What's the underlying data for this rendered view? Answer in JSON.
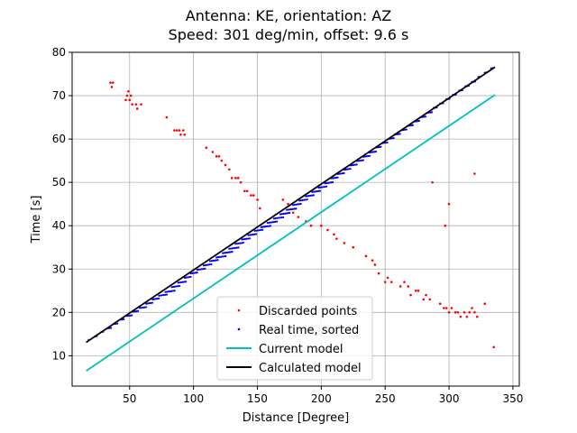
{
  "chart_data": {
    "type": "scatter",
    "title_line1": "Antenna: KE, orientation:  AZ",
    "title_line2": "Speed: 301 deg/min, offset: 9.6 s",
    "xlabel": "Distance [Degree]",
    "ylabel": "Time [s]",
    "xlim": [
      5,
      355
    ],
    "ylim": [
      3,
      80
    ],
    "xticks": [
      50,
      100,
      150,
      200,
      250,
      300,
      350
    ],
    "yticks": [
      10,
      20,
      30,
      40,
      50,
      60,
      70,
      80
    ],
    "grid": true,
    "legend_position": "lower-center",
    "legend": [
      {
        "label": "Discarded points",
        "color": "#ff0000",
        "kind": "marker"
      },
      {
        "label": "Real time, sorted",
        "color": "#0000ff",
        "kind": "marker"
      },
      {
        "label": "Current model",
        "color": "#00bfbf",
        "kind": "line"
      },
      {
        "label": "Calculated model",
        "color": "#000000",
        "kind": "line"
      }
    ],
    "series": [
      {
        "name": "Discarded points",
        "style": "points",
        "color": "#ff0000",
        "x": [
          35,
          37,
          36,
          47,
          48,
          49,
          50,
          51,
          52,
          55,
          56,
          59,
          79,
          85,
          87,
          89,
          90,
          92,
          93,
          110,
          115,
          118,
          120,
          122,
          125,
          128,
          130,
          133,
          135,
          137,
          140,
          142,
          145,
          147,
          150,
          152,
          170,
          174,
          178,
          182,
          188,
          192,
          200,
          205,
          210,
          212,
          218,
          225,
          235,
          240,
          242,
          245,
          250,
          252,
          255,
          262,
          265,
          268,
          270,
          274,
          276,
          280,
          282,
          285,
          293,
          296,
          298,
          300,
          302,
          305,
          307,
          309,
          312,
          314,
          316,
          318,
          320,
          322,
          328,
          335,
          300,
          297,
          287,
          320
        ],
        "y": [
          73,
          73,
          72,
          69,
          70,
          71,
          69,
          70,
          68,
          68,
          67,
          68,
          65,
          62,
          62,
          62,
          61,
          62,
          61,
          58,
          57,
          56,
          56,
          55,
          54,
          53,
          51,
          51,
          51,
          50,
          48,
          48,
          47,
          47,
          46,
          44,
          46,
          45,
          43,
          42,
          41,
          40,
          40,
          39,
          38,
          37,
          36,
          35,
          33,
          32,
          31,
          29,
          27,
          28,
          27,
          26,
          27,
          26,
          24,
          25,
          25,
          23,
          24,
          23,
          22,
          21,
          21,
          20,
          21,
          20,
          20,
          19,
          20,
          19,
          20,
          21,
          20,
          19,
          22,
          12,
          45,
          40,
          50,
          52
        ]
      },
      {
        "name": "Real time, sorted",
        "style": "points",
        "color": "#0000ff",
        "slope": 0.1994,
        "intercept": 9.6,
        "x": [
          18,
          23,
          28,
          33,
          38,
          43,
          48,
          53,
          58,
          63,
          68,
          73,
          78,
          83,
          88,
          93,
          98,
          103,
          108,
          113,
          118,
          123,
          128,
          133,
          138,
          143,
          148,
          153,
          158,
          163,
          168,
          173,
          178,
          183,
          188,
          193,
          198,
          203,
          208,
          213,
          218,
          223,
          228,
          233,
          238,
          243,
          248,
          253,
          258,
          263,
          268,
          273,
          278,
          283,
          288,
          293,
          298,
          303,
          308,
          313,
          318,
          323,
          328,
          333
        ],
        "spread": [
          1,
          2,
          2,
          3,
          3,
          3,
          4,
          4,
          5,
          5,
          5,
          6,
          7,
          6,
          6,
          5,
          5,
          6,
          6,
          6,
          7,
          7,
          7,
          6,
          6,
          6,
          6,
          7,
          7,
          7,
          7,
          7,
          6,
          6,
          6,
          6,
          6,
          6,
          5,
          5,
          5,
          5,
          5,
          5,
          5,
          4,
          4,
          4,
          4,
          4,
          4,
          4,
          4,
          4,
          3,
          3,
          3,
          3,
          3,
          3,
          3,
          2,
          2,
          2
        ]
      },
      {
        "name": "Current model",
        "style": "line",
        "color": "#00bfbf",
        "x": [
          16,
          336
        ],
        "y": [
          6.5,
          70.2
        ]
      },
      {
        "name": "Calculated model",
        "style": "line",
        "color": "#000000",
        "x": [
          16,
          336
        ],
        "y": [
          13.1,
          76.6
        ]
      }
    ]
  }
}
